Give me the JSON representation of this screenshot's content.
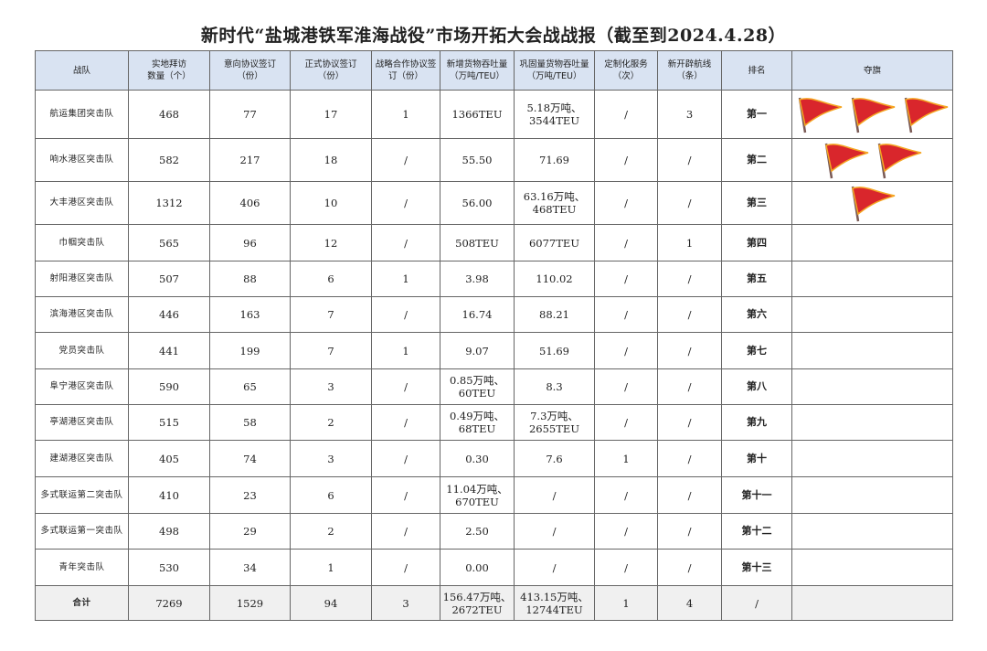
{
  "title": "新时代“盐城港铁军淮海战役”市场开拓大会战战报（截至到2024.4.28）",
  "colors": {
    "header_bg": "#d9e3f2",
    "total_bg": "#f0f0f0",
    "flag": "#d9262c",
    "flag_border": "#f5a623"
  },
  "headers": [
    "战队",
    "实地拜访\n数量（个）",
    "意向协议签订\n（份）",
    "正式协议签订\n（份）",
    "战略合作协议签\n订（份）",
    "新增货物吞吐量\n（万吨/TEU）",
    "巩固量货物吞吐量\n（万吨/TEU）",
    "定制化服务\n（次）",
    "新开辟航线\n（条）",
    "排名",
    "夺旗"
  ],
  "rows": [
    {
      "team": "航运集团突击队",
      "visits": "468",
      "intent": "77",
      "formal": "17",
      "strategic": "1",
      "new_throughput": "1366TEU",
      "consolidated": "5.18万吨、\n3544TEU",
      "custom": "/",
      "routes": "3",
      "rank": "第一",
      "flags": 3
    },
    {
      "team": "响水港区突击队",
      "visits": "582",
      "intent": "217",
      "formal": "18",
      "strategic": "/",
      "new_throughput": "55.50",
      "consolidated": "71.69",
      "custom": "/",
      "routes": "/",
      "rank": "第二",
      "flags": 2
    },
    {
      "team": "大丰港区突击队",
      "visits": "1312",
      "intent": "406",
      "formal": "10",
      "strategic": "/",
      "new_throughput": "56.00",
      "consolidated": "63.16万吨、\n468TEU",
      "custom": "/",
      "routes": "/",
      "rank": "第三",
      "flags": 1
    },
    {
      "team": "巾帼突击队",
      "visits": "565",
      "intent": "96",
      "formal": "12",
      "strategic": "/",
      "new_throughput": "508TEU",
      "consolidated": "6077TEU",
      "custom": "/",
      "routes": "1",
      "rank": "第四",
      "flags": 0
    },
    {
      "team": "射阳港区突击队",
      "visits": "507",
      "intent": "88",
      "formal": "6",
      "strategic": "1",
      "new_throughput": "3.98",
      "consolidated": "110.02",
      "custom": "/",
      "routes": "/",
      "rank": "第五",
      "flags": 0
    },
    {
      "team": "滨海港区突击队",
      "visits": "446",
      "intent": "163",
      "formal": "7",
      "strategic": "/",
      "new_throughput": "16.74",
      "consolidated": "88.21",
      "custom": "/",
      "routes": "/",
      "rank": "第六",
      "flags": 0
    },
    {
      "team": "党员突击队",
      "visits": "441",
      "intent": "199",
      "formal": "7",
      "strategic": "1",
      "new_throughput": "9.07",
      "consolidated": "51.69",
      "custom": "/",
      "routes": "/",
      "rank": "第七",
      "flags": 0
    },
    {
      "team": "阜宁港区突击队",
      "visits": "590",
      "intent": "65",
      "formal": "3",
      "strategic": "/",
      "new_throughput": "0.85万吨、\n60TEU",
      "consolidated": "8.3",
      "custom": "/",
      "routes": "/",
      "rank": "第八",
      "flags": 0
    },
    {
      "team": "亭湖港区突击队",
      "visits": "515",
      "intent": "58",
      "formal": "2",
      "strategic": "/",
      "new_throughput": "0.49万吨、\n68TEU",
      "consolidated": "7.3万吨、\n2655TEU",
      "custom": "/",
      "routes": "/",
      "rank": "第九",
      "flags": 0
    },
    {
      "team": "建湖港区突击队",
      "visits": "405",
      "intent": "74",
      "formal": "3",
      "strategic": "/",
      "new_throughput": "0.30",
      "consolidated": "7.6",
      "custom": "1",
      "routes": "/",
      "rank": "第十",
      "flags": 0
    },
    {
      "team": "多式联运第二突击队",
      "visits": "410",
      "intent": "23",
      "formal": "6",
      "strategic": "/",
      "new_throughput": "11.04万吨、\n670TEU",
      "consolidated": "/",
      "custom": "/",
      "routes": "/",
      "rank": "第十一",
      "flags": 0
    },
    {
      "team": "多式联运第一突击队",
      "visits": "498",
      "intent": "29",
      "formal": "2",
      "strategic": "/",
      "new_throughput": "2.50",
      "consolidated": "/",
      "custom": "/",
      "routes": "/",
      "rank": "第十二",
      "flags": 0
    },
    {
      "team": "青年突击队",
      "visits": "530",
      "intent": "34",
      "formal": "1",
      "strategic": "/",
      "new_throughput": "0.00",
      "consolidated": "/",
      "custom": "/",
      "routes": "/",
      "rank": "第十三",
      "flags": 0
    }
  ],
  "total": {
    "team": "合计",
    "visits": "7269",
    "intent": "1529",
    "formal": "94",
    "strategic": "3",
    "new_throughput": "156.47万吨、\n2672TEU",
    "consolidated": "413.15万吨、\n12744TEU",
    "custom": "1",
    "routes": "4",
    "rank": "/"
  }
}
